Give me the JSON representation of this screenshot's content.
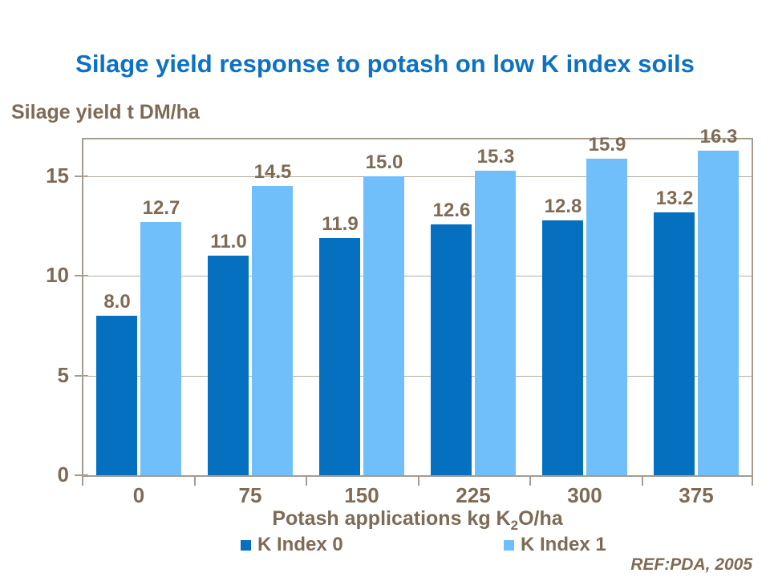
{
  "slide": {
    "ref": "REF:PDA, 2005"
  },
  "colors": {
    "title": "#0D72C4",
    "text": "#7E6B55",
    "axis": "#A59C8F",
    "grid": "#B6ADA0"
  },
  "chart_data": {
    "type": "bar",
    "title": "Silage yield response to potash on low K index soils",
    "ylabel": "Silage yield t DM/ha",
    "xlabel": "Potash applications kg K2O/ha",
    "xlabel_parts": {
      "pre": "Potash applications kg K",
      "sub": "2",
      "post": "O/ha"
    },
    "categories": [
      "0",
      "75",
      "150",
      "225",
      "300",
      "375"
    ],
    "series": [
      {
        "name": "K Index 0",
        "color": "#0570C0",
        "values": [
          8.0,
          11.0,
          11.9,
          12.6,
          12.8,
          13.2
        ]
      },
      {
        "name": "K Index 1",
        "color": "#70BFFA",
        "values": [
          12.7,
          14.5,
          15.0,
          15.3,
          15.9,
          16.3
        ]
      }
    ],
    "yticks": [
      0,
      5,
      10,
      15
    ],
    "ylim": [
      0,
      16.85
    ],
    "grid": "horizontal",
    "legend_position": "bottom",
    "value_labels": true
  }
}
